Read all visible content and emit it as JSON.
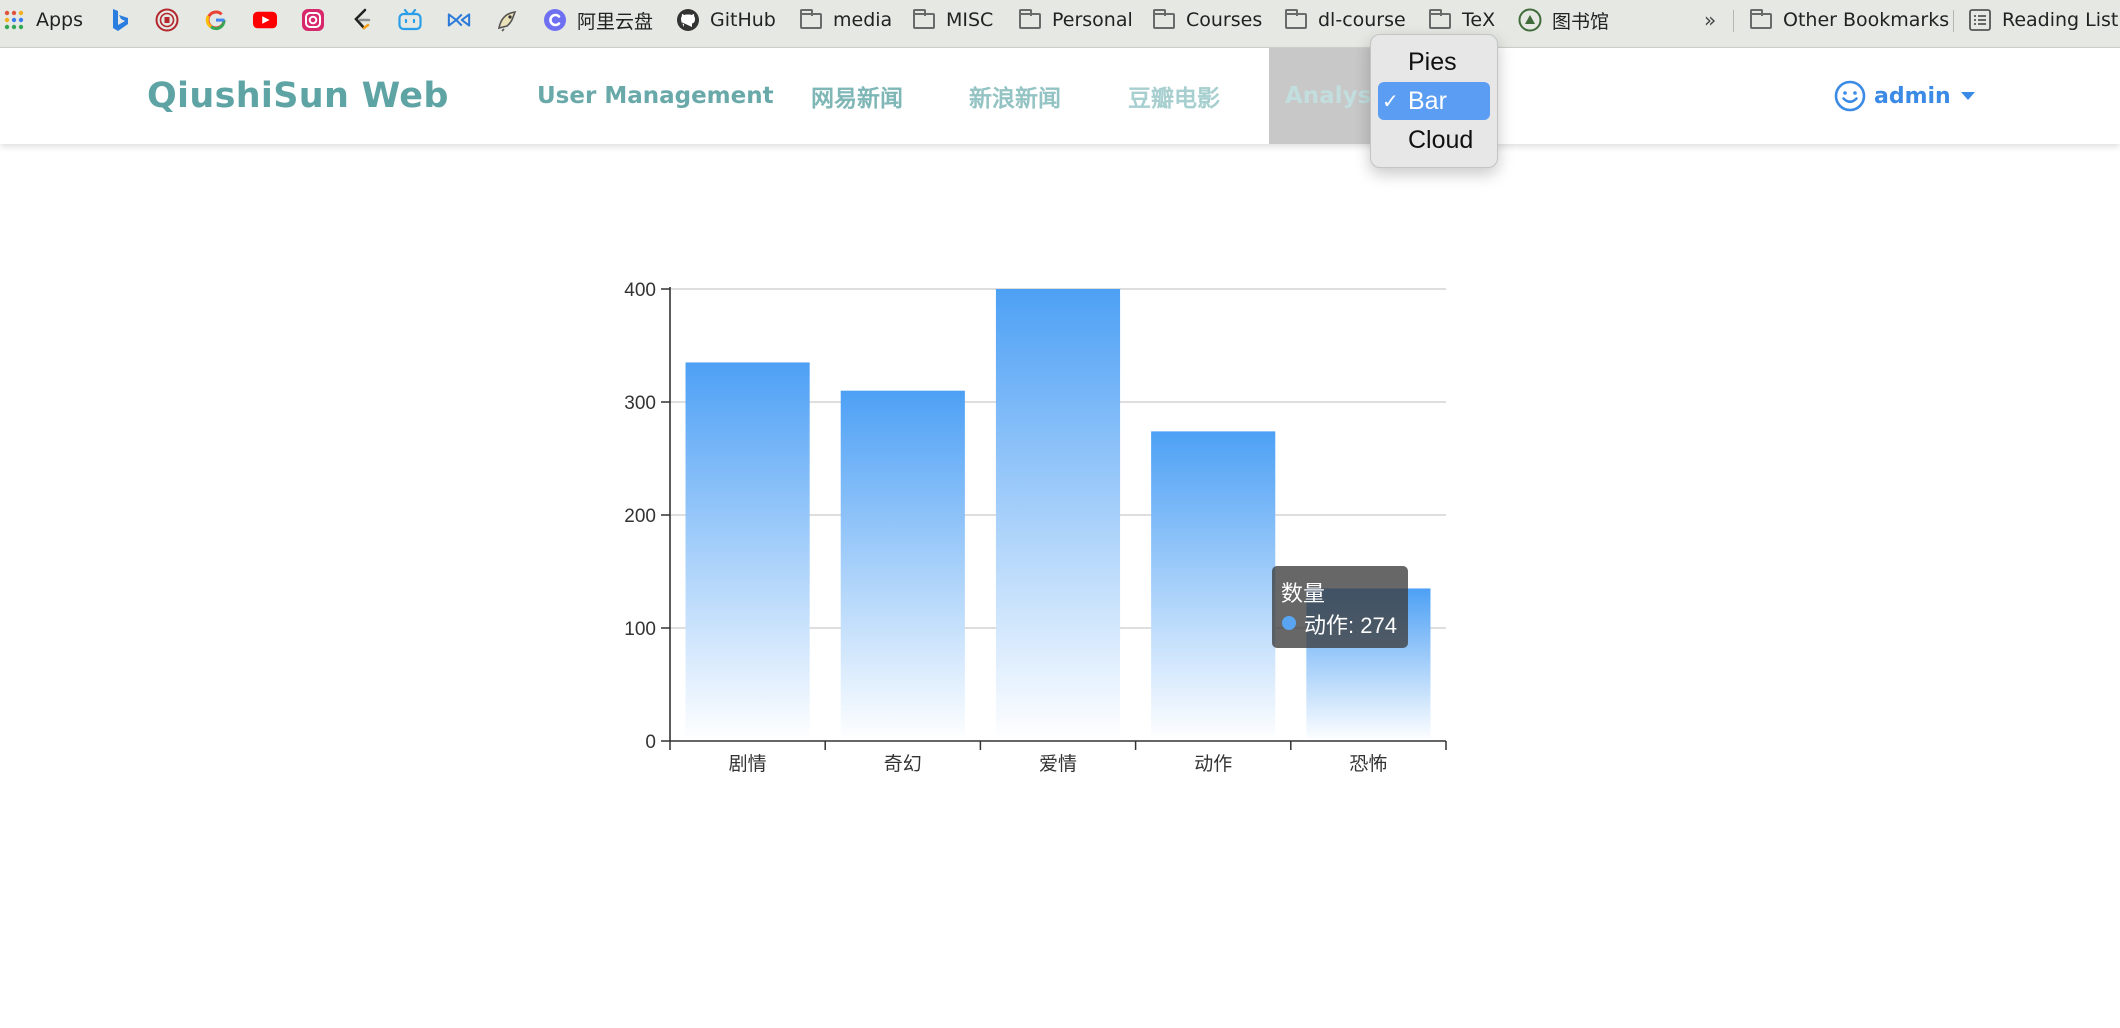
{
  "bookmarks": {
    "apps_label": "Apps",
    "aliyun_label": "阿里云盘",
    "github_label": "GitHub",
    "folders": [
      "media",
      "MISC",
      "Personal",
      "Courses",
      "dl-course",
      "TeX"
    ],
    "library_label": "图书馆",
    "overflow": "»",
    "other_label": "Other Bookmarks",
    "reading_list_label": "Reading List"
  },
  "navbar": {
    "brand": "QiushiSun Web",
    "items": [
      "User Management",
      "网易新闻",
      "新浪新闻",
      "豆瓣电影",
      "Analysis"
    ],
    "item_colors": [
      "#6aa9a9",
      "#7fb6b6",
      "#94c3c3",
      "#a7cfcf",
      "#c2dede"
    ],
    "user_label": "admin",
    "accent": "#3b8ae6"
  },
  "dropdown": {
    "options": [
      "Pies",
      "Bar",
      "Cloud"
    ],
    "selected": "Bar",
    "check": "✓"
  },
  "chart_data": {
    "type": "bar",
    "categories": [
      "剧情",
      "奇幻",
      "爱情",
      "动作",
      "恐怖"
    ],
    "series": [
      {
        "name": "数量",
        "values": [
          335,
          310,
          400,
          274,
          135
        ]
      }
    ],
    "ylim": [
      0,
      400
    ],
    "yticks": [
      0,
      100,
      200,
      300,
      400
    ],
    "grid": true,
    "bar_color_top": "#4da0f5",
    "bar_color_bottom": "#ffffff"
  },
  "tooltip": {
    "title": "数量",
    "text": "动作: 274"
  }
}
